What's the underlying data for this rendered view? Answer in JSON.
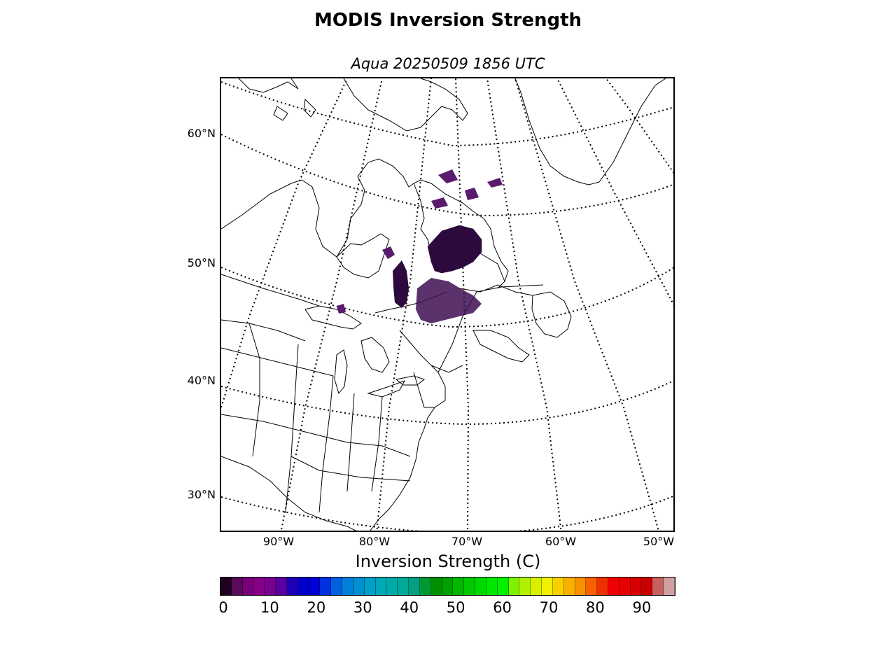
{
  "title": "MODIS Inversion Strength",
  "subtitle": "Aqua 20250509 1856 UTC",
  "map": {
    "projection": "polar-stereographic",
    "lat_labels": [
      "60°N",
      "50°N",
      "40°N",
      "30°N"
    ],
    "lon_labels": [
      "90°W",
      "80°W",
      "70°W",
      "60°W",
      "50°W"
    ],
    "data_color": "#2d0a3e",
    "data_color_light": "#5a1a6e",
    "coastline_color": "#000000"
  },
  "colorbar": {
    "label": "Inversion Strength (C)",
    "ticks": [
      "0",
      "10",
      "20",
      "30",
      "40",
      "50",
      "60",
      "70",
      "80",
      "90"
    ],
    "vmin": 0,
    "vmax": 98,
    "colors": [
      "#200020",
      "#5a0a5a",
      "#7a007a",
      "#860086",
      "#7a0090",
      "#5a00a0",
      "#1e00b8",
      "#0000c8",
      "#0000d8",
      "#0030e0",
      "#0060e0",
      "#0080d8",
      "#0090d0",
      "#00a0c8",
      "#00a8b8",
      "#00aaa8",
      "#00aa98",
      "#00a080",
      "#009830",
      "#009000",
      "#00a000",
      "#00b800",
      "#00c800",
      "#00d800",
      "#00e800",
      "#00f000",
      "#80f000",
      "#b0f000",
      "#d8f000",
      "#f0f000",
      "#f8d000",
      "#f8b000",
      "#f89000",
      "#f86000",
      "#f03000",
      "#f00000",
      "#e80000",
      "#d80000",
      "#c80000",
      "#c86060",
      "#d0a0a0"
    ]
  }
}
